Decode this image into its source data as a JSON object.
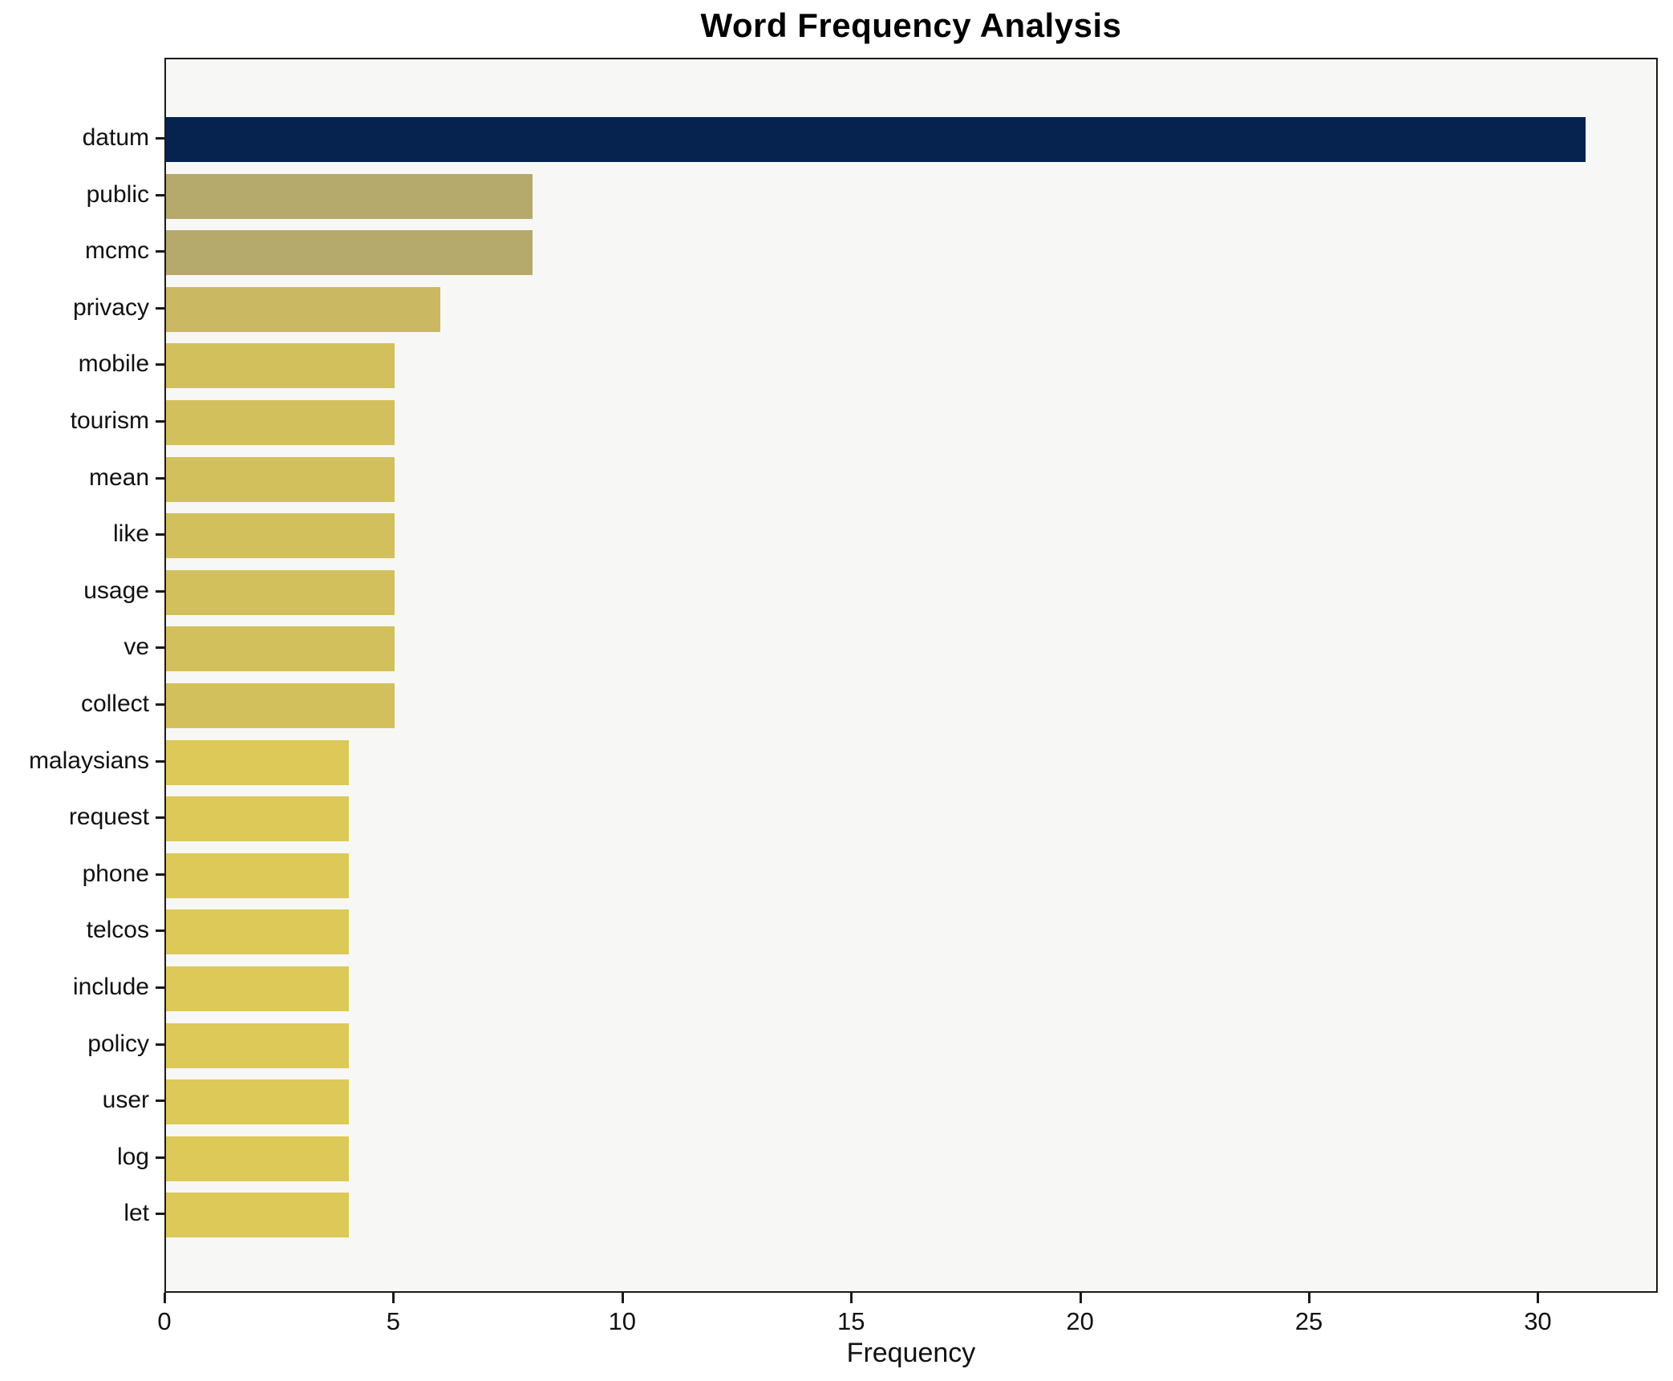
{
  "chart_data": {
    "type": "bar",
    "orientation": "horizontal",
    "title": "Word Frequency Analysis",
    "xlabel": "Frequency",
    "ylabel": "",
    "categories": [
      "datum",
      "public",
      "mcmc",
      "privacy",
      "mobile",
      "tourism",
      "mean",
      "like",
      "usage",
      "ve",
      "collect",
      "malaysians",
      "request",
      "phone",
      "telcos",
      "include",
      "policy",
      "user",
      "log",
      "let"
    ],
    "values": [
      31,
      8,
      8,
      6,
      5,
      5,
      5,
      5,
      5,
      5,
      5,
      4,
      4,
      4,
      4,
      4,
      4,
      4,
      4,
      4
    ],
    "bar_colors": [
      "#05234e",
      "#b5a96c",
      "#b5a96c",
      "#cbb862",
      "#d2c05c",
      "#d2c05c",
      "#d2c05c",
      "#d2c05c",
      "#d2c05c",
      "#d2c05c",
      "#d2c05c",
      "#dcc957",
      "#dcc957",
      "#dcc957",
      "#dcc957",
      "#dcc957",
      "#dcc957",
      "#dcc957",
      "#dcc957",
      "#dcc957"
    ],
    "xlim": [
      0,
      32.55
    ],
    "xticks": [
      0,
      5,
      10,
      15,
      20,
      25,
      30
    ],
    "grid": false,
    "legend": null,
    "plot_background": "#f7f7f5",
    "figure_background": "#ffffff",
    "spine_color": "#1a1a1a"
  }
}
